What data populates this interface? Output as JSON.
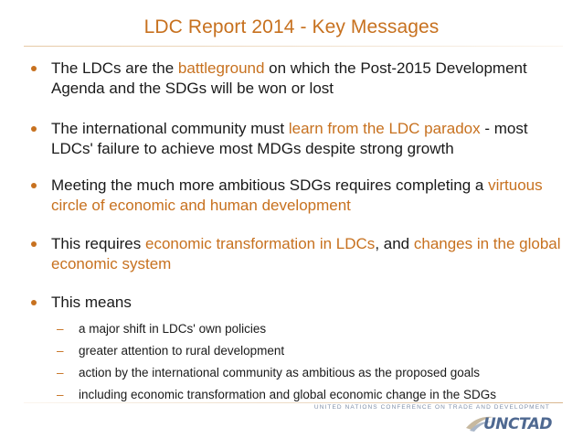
{
  "title": "LDC Report 2014 - Key Messages",
  "bullets": [
    {
      "pre": "The LDCs are the ",
      "hl1": "battleground",
      "mid": " on which the Post-2015 Development Agenda and the SDGs will be won or lost"
    },
    {
      "pre": "The international community must ",
      "hl1": "learn from the LDC paradox",
      "mid": " - most LDCs' failure to achieve most MDGs despite strong growth"
    },
    {
      "pre": "Meeting the much more ambitious SDGs requires completing a ",
      "hl1": "virtuous circle of economic and human development",
      "mid": ""
    },
    {
      "pre": "This requires ",
      "hl1": "economic transformation in LDCs",
      "mid": ", and ",
      "hl2": "changes in the global economic system"
    },
    {
      "pre": "This means",
      "sub_items": [
        "a major shift in LDCs' own policies",
        "greater attention to rural development",
        "action by the international community as ambitious as the proposed goals",
        "including economic transformation and global economic change in the SDGs"
      ]
    }
  ],
  "footer": {
    "org_name": "UNITED NATIONS CONFERENCE ON TRADE AND DEVELOPMENT",
    "logo_text": "UNCTAD"
  },
  "colors": {
    "accent": "#c7711f",
    "text": "#1a1a1a",
    "logo": "#4f6991"
  }
}
